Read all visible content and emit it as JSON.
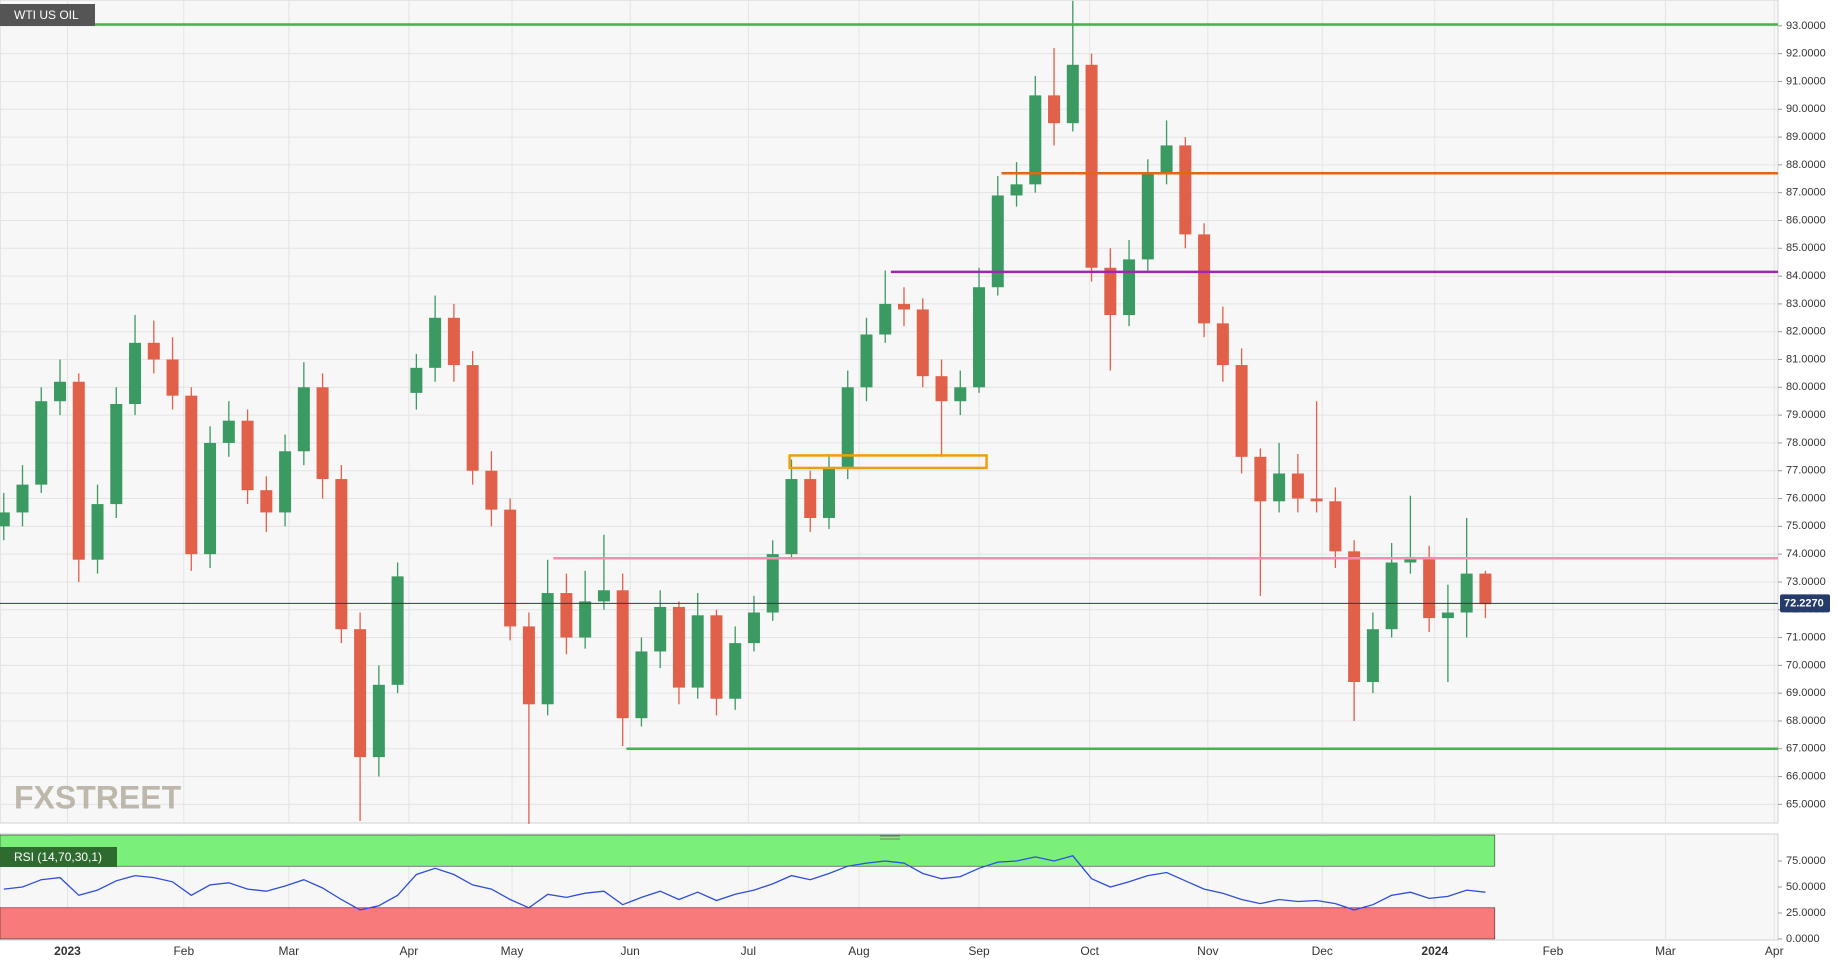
{
  "chart_data": {
    "type": "candlestick",
    "title": "WTI US OIL",
    "watermark": "FXSTREET",
    "categories": [
      null,
      null,
      null,
      null,
      null,
      null,
      null,
      null,
      null,
      null,
      null,
      null,
      null,
      null,
      null,
      null,
      null,
      null,
      null,
      null,
      null,
      null,
      null,
      null,
      null,
      null,
      null,
      null,
      null,
      null,
      null,
      null,
      null,
      null,
      null,
      null,
      null,
      null,
      null,
      null,
      null,
      null,
      null,
      null,
      null,
      null,
      null,
      null,
      null,
      null,
      null,
      null,
      null,
      null,
      null,
      null,
      null,
      null,
      null,
      null,
      null,
      null,
      null,
      null,
      null,
      null,
      null,
      null,
      null,
      null,
      null,
      null,
      null,
      null,
      null,
      null,
      null,
      null,
      null,
      null
    ],
    "open": [
      75.0,
      75.5,
      76.5,
      79.5,
      80.2,
      73.8,
      75.8,
      79.4,
      81.6,
      81.0,
      79.7,
      74.0,
      78.0,
      78.8,
      76.3,
      75.5,
      77.7,
      80.0,
      76.7,
      71.3,
      66.7,
      69.3,
      79.8,
      80.7,
      82.5,
      80.8,
      77.0,
      75.6,
      71.4,
      68.6,
      72.6,
      71.0,
      72.3,
      72.7,
      68.1,
      70.5,
      72.1,
      69.2,
      71.8,
      68.8,
      70.8,
      71.9,
      74.0,
      76.7,
      75.3,
      77.1,
      80.0,
      81.9,
      83.0,
      82.8,
      80.4,
      79.5,
      80.0,
      83.6,
      86.9,
      87.3,
      90.5,
      89.5,
      91.6,
      84.3,
      82.6,
      84.6,
      87.7,
      88.7,
      85.5,
      82.3,
      80.8,
      77.5,
      75.9,
      76.9,
      76.0,
      75.9,
      74.1,
      69.4,
      71.3,
      73.7,
      73.9,
      71.7,
      71.9,
      73.3
    ],
    "high": [
      76.2,
      77.2,
      80.0,
      81.0,
      80.5,
      76.5,
      80.0,
      82.6,
      82.4,
      81.8,
      80.0,
      78.6,
      79.5,
      79.2,
      76.8,
      78.3,
      80.9,
      80.5,
      77.2,
      71.9,
      70.0,
      73.7,
      81.2,
      83.3,
      83.0,
      81.3,
      77.7,
      76.0,
      71.9,
      73.8,
      73.3,
      73.4,
      74.7,
      73.3,
      71.0,
      72.7,
      72.3,
      72.6,
      72.0,
      71.4,
      72.5,
      74.5,
      77.4,
      77.0,
      77.6,
      80.6,
      82.5,
      84.2,
      83.6,
      83.2,
      81.0,
      80.6,
      84.3,
      87.6,
      88.1,
      91.2,
      92.2,
      93.9,
      92.0,
      85.0,
      85.3,
      88.2,
      89.6,
      89.0,
      85.9,
      82.9,
      81.4,
      77.8,
      78.0,
      77.6,
      79.5,
      76.4,
      74.5,
      71.9,
      74.4,
      76.1,
      74.3,
      72.9,
      75.3,
      73.4
    ],
    "low": [
      74.5,
      75.0,
      76.2,
      79.0,
      73.0,
      73.3,
      75.3,
      79.0,
      80.5,
      79.2,
      73.4,
      73.5,
      77.5,
      75.8,
      74.8,
      75.0,
      77.2,
      76.0,
      70.8,
      64.4,
      66.0,
      69.0,
      79.2,
      80.2,
      80.2,
      76.5,
      75.0,
      70.9,
      64.3,
      68.2,
      70.4,
      70.6,
      72.0,
      67.1,
      67.8,
      69.9,
      68.6,
      68.8,
      68.2,
      68.4,
      70.5,
      71.6,
      73.8,
      74.8,
      74.9,
      76.7,
      79.5,
      81.6,
      82.2,
      80.0,
      77.5,
      79.0,
      79.8,
      83.3,
      86.5,
      87.0,
      88.7,
      89.2,
      83.8,
      80.6,
      82.2,
      84.2,
      87.3,
      85.0,
      81.8,
      80.2,
      76.9,
      72.5,
      75.5,
      75.5,
      75.5,
      73.5,
      68.0,
      69.0,
      71.0,
      73.3,
      71.2,
      69.4,
      71.0,
      71.7
    ],
    "close": [
      75.5,
      76.5,
      79.5,
      80.2,
      73.8,
      75.8,
      79.4,
      81.6,
      81.0,
      79.7,
      74.0,
      78.0,
      78.8,
      76.3,
      75.5,
      77.7,
      80.0,
      76.7,
      71.3,
      66.7,
      69.3,
      73.2,
      80.7,
      82.5,
      80.8,
      77.0,
      75.6,
      71.4,
      68.6,
      72.6,
      71.0,
      72.3,
      72.7,
      68.1,
      70.5,
      72.1,
      69.2,
      71.8,
      68.8,
      70.8,
      71.9,
      74.0,
      76.7,
      75.3,
      77.1,
      80.0,
      81.9,
      83.0,
      82.8,
      80.4,
      79.5,
      80.0,
      83.6,
      86.9,
      87.3,
      90.5,
      89.5,
      91.6,
      84.3,
      82.6,
      84.6,
      87.7,
      88.7,
      85.5,
      82.3,
      80.8,
      77.5,
      75.9,
      76.9,
      76.0,
      75.9,
      74.1,
      69.4,
      71.3,
      73.7,
      73.9,
      71.7,
      71.9,
      73.3,
      72.2
    ],
    "up_color": "#3a9a62",
    "down_color": "#e0604a",
    "xlim": [
      -0.2,
      94.6
    ],
    "xticks": [
      {
        "value": 3.4,
        "label": "2023"
      },
      {
        "value": 9.6,
        "label": "Feb"
      },
      {
        "value": 15.2,
        "label": "Mar"
      },
      {
        "value": 21.6,
        "label": "Apr"
      },
      {
        "value": 27.1,
        "label": "May"
      },
      {
        "value": 33.4,
        "label": "Jun"
      },
      {
        "value": 39.7,
        "label": "Jul"
      },
      {
        "value": 45.6,
        "label": "Aug"
      },
      {
        "value": 52.0,
        "label": "Sep"
      },
      {
        "value": 57.9,
        "label": "Oct"
      },
      {
        "value": 64.2,
        "label": "Nov"
      },
      {
        "value": 70.3,
        "label": "Dec"
      },
      {
        "value": 76.3,
        "label": "2024"
      },
      {
        "value": 82.6,
        "label": "Feb"
      },
      {
        "value": 88.6,
        "label": "Mar"
      },
      {
        "value": 94.4,
        "label": "Apr"
      }
    ],
    "ylim": [
      64.33,
      93.93
    ],
    "yticks": [
      {
        "value": 65,
        "label": "65.0000"
      },
      {
        "value": 66,
        "label": "66.0000"
      },
      {
        "value": 67,
        "label": "67.0000"
      },
      {
        "value": 68,
        "label": "68.0000"
      },
      {
        "value": 69,
        "label": "69.0000"
      },
      {
        "value": 70,
        "label": "70.0000"
      },
      {
        "value": 71,
        "label": "71.0000"
      },
      {
        "value": 72,
        "label": "72.0000"
      },
      {
        "value": 73,
        "label": "73.0000"
      },
      {
        "value": 74,
        "label": "74.0000"
      },
      {
        "value": 75,
        "label": "75.0000"
      },
      {
        "value": 76,
        "label": "76.0000"
      },
      {
        "value": 77,
        "label": "77.0000"
      },
      {
        "value": 78,
        "label": "78.0000"
      },
      {
        "value": 79,
        "label": "79.0000"
      },
      {
        "value": 80,
        "label": "80.0000"
      },
      {
        "value": 81,
        "label": "81.0000"
      },
      {
        "value": 82,
        "label": "82.0000"
      },
      {
        "value": 83,
        "label": "83.0000"
      },
      {
        "value": 84,
        "label": "84.0000"
      },
      {
        "value": 85,
        "label": "85.0000"
      },
      {
        "value": 86,
        "label": "86.0000"
      },
      {
        "value": 87,
        "label": "87.0000"
      },
      {
        "value": 88,
        "label": "88.0000"
      },
      {
        "value": 89,
        "label": "89.0000"
      },
      {
        "value": 90,
        "label": "90.0000"
      },
      {
        "value": 91,
        "label": "91.0000"
      },
      {
        "value": 92,
        "label": "92.0000"
      },
      {
        "value": 93,
        "label": "93.0000"
      }
    ],
    "grid": true,
    "last_price": {
      "value": 72.227,
      "label": "72.2270",
      "color": "#243b6b"
    },
    "levels": [
      {
        "value": 93.05,
        "from": -0.2,
        "color": "#4caf50"
      },
      {
        "value": 87.7,
        "from": 53.2,
        "color": "#e0661a"
      },
      {
        "value": 84.15,
        "from": 47.3,
        "color": "#9c27b0"
      },
      {
        "value": 73.85,
        "from": 29.3,
        "color": "#f48fb1"
      },
      {
        "value": 67.0,
        "from": 33.2,
        "color": "#4caf50"
      }
    ],
    "zone": {
      "low": 77.1,
      "high": 77.55,
      "from": 41.9,
      "to": 52.4,
      "color": "#f39c12"
    },
    "rsi": {
      "label": "RSI (14,70,30,1)",
      "color": "#2f4fd8",
      "values": [
        48,
        50,
        57,
        59,
        42,
        47,
        56,
        61,
        59,
        55,
        42,
        52,
        54,
        48,
        46,
        51,
        57,
        49,
        38,
        28,
        32,
        42,
        62,
        68,
        62,
        52,
        48,
        38,
        30,
        43,
        40,
        44,
        46,
        33,
        40,
        46,
        38,
        45,
        37,
        43,
        47,
        53,
        61,
        57,
        63,
        70,
        73,
        75,
        73,
        63,
        58,
        60,
        68,
        74,
        75,
        79,
        75,
        80,
        58,
        50,
        55,
        61,
        64,
        56,
        48,
        44,
        38,
        34,
        38,
        36,
        37,
        34,
        28,
        33,
        42,
        45,
        39,
        41,
        47,
        45
      ],
      "ylim": [
        -1,
        101
      ],
      "yticks": [
        {
          "value": 0,
          "label": "0.0000"
        },
        {
          "value": 25,
          "label": "25.0000"
        },
        {
          "value": 50,
          "label": "50.0000"
        },
        {
          "value": 75,
          "label": "75.0000"
        }
      ],
      "bands": [
        {
          "from": 70,
          "to": 100,
          "color": "#7af07a"
        },
        {
          "from": 0,
          "to": 30,
          "color": "#f87a7a"
        }
      ]
    }
  }
}
